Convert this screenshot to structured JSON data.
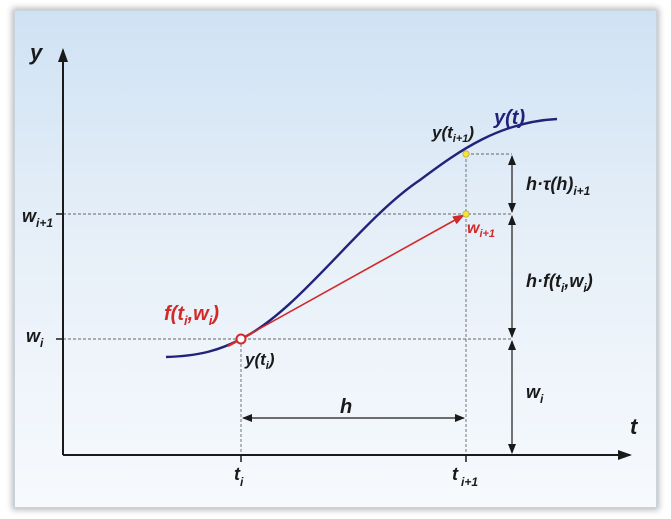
{
  "axes": {
    "y_label": "y",
    "t_label": "t"
  },
  "ticks": {
    "t_i": {
      "base": "t",
      "sub": "i"
    },
    "t_i1": {
      "base": "t",
      "sub": "i+1"
    },
    "w_i": {
      "base": "w",
      "sub": "i"
    },
    "w_i1": {
      "base": "w",
      "sub": "i+1"
    }
  },
  "curve": {
    "label": "y(t)"
  },
  "points": {
    "y_ti": {
      "pre": "y(t",
      "sub": "i",
      "post": ")"
    },
    "y_ti1": {
      "pre": "y(t",
      "sub": "i+1",
      "post": ")"
    },
    "w_i1": {
      "base": "w",
      "sub": "i+1"
    }
  },
  "slope": {
    "pre": "f(t",
    "sub": "i",
    "post": ",w",
    "sub2": "i",
    "end": ")"
  },
  "step": {
    "label": "h"
  },
  "right_labels": {
    "tau": {
      "pre": "h·τ(h)",
      "sub": "i+1"
    },
    "f": {
      "pre": "h·f(t",
      "sub": "i",
      "mid": ",w",
      "sub2": "i",
      "end": ")"
    },
    "w": {
      "base": "w",
      "sub": "i"
    }
  },
  "colors": {
    "curve": "#22227a",
    "slope": "#d22a2a",
    "axis": "#1a1a1a",
    "guide": "#666666"
  }
}
